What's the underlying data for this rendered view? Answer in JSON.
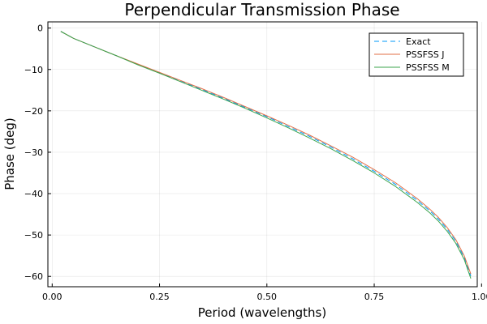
{
  "chart_data": {
    "type": "line",
    "title": "Perpendicular Transmission Phase",
    "xlabel": "Period (wavelengths)",
    "ylabel": "Phase (deg)",
    "xlim": [
      -0.01,
      0.99
    ],
    "ylim": [
      -62.5,
      1.5
    ],
    "xticks": [
      0.0,
      0.25,
      0.5,
      0.75,
      1.0
    ],
    "xtick_labels": [
      "0.00",
      "0.25",
      "0.50",
      "0.75",
      "1.00"
    ],
    "yticks": [
      0,
      -10,
      -20,
      -30,
      -40,
      -50,
      -60
    ],
    "ytick_labels": [
      "0",
      "−10",
      "−20",
      "−30",
      "−40",
      "−50",
      "−60"
    ],
    "grid": true,
    "legend_position": "top-right",
    "series": [
      {
        "name": "Exact",
        "color": "#009af9",
        "dash": "dashed",
        "x": [
          0.02,
          0.05,
          0.1,
          0.15,
          0.2,
          0.25,
          0.3,
          0.35,
          0.4,
          0.45,
          0.5,
          0.55,
          0.6,
          0.65,
          0.7,
          0.75,
          0.8,
          0.85,
          0.88,
          0.9,
          0.92,
          0.94,
          0.96,
          0.975
        ],
        "y": [
          -0.8,
          -2.5,
          -4.6,
          -6.7,
          -8.8,
          -10.8,
          -12.8,
          -14.9,
          -17.0,
          -19.2,
          -21.4,
          -23.8,
          -26.2,
          -28.8,
          -31.6,
          -34.6,
          -37.8,
          -41.6,
          -44.2,
          -46.2,
          -48.6,
          -51.5,
          -55.5,
          -59.9
        ]
      },
      {
        "name": "PSSFSS J",
        "color": "#e26f46",
        "dash": "solid",
        "x": [
          0.02,
          0.05,
          0.1,
          0.15,
          0.2,
          0.25,
          0.3,
          0.35,
          0.4,
          0.45,
          0.5,
          0.55,
          0.6,
          0.65,
          0.7,
          0.75,
          0.8,
          0.85,
          0.88,
          0.9,
          0.92,
          0.94,
          0.96,
          0.975
        ],
        "y": [
          -0.8,
          -2.5,
          -4.6,
          -6.7,
          -8.7,
          -10.7,
          -12.7,
          -14.7,
          -16.8,
          -19.0,
          -21.2,
          -23.5,
          -25.9,
          -28.5,
          -31.2,
          -34.2,
          -37.4,
          -41.2,
          -43.8,
          -45.8,
          -48.2,
          -51.1,
          -55.1,
          -59.4
        ]
      },
      {
        "name": "PSSFSS M",
        "color": "#3da44d",
        "dash": "solid",
        "x": [
          0.02,
          0.05,
          0.1,
          0.15,
          0.2,
          0.25,
          0.3,
          0.35,
          0.4,
          0.45,
          0.5,
          0.55,
          0.6,
          0.65,
          0.7,
          0.75,
          0.8,
          0.85,
          0.88,
          0.9,
          0.92,
          0.94,
          0.96,
          0.975
        ],
        "y": [
          -0.8,
          -2.5,
          -4.6,
          -6.7,
          -8.9,
          -10.9,
          -13.0,
          -15.1,
          -17.2,
          -19.4,
          -21.7,
          -24.1,
          -26.6,
          -29.2,
          -32.0,
          -35.0,
          -38.3,
          -42.1,
          -44.7,
          -46.7,
          -49.1,
          -52.0,
          -56.0,
          -60.5
        ]
      }
    ]
  }
}
